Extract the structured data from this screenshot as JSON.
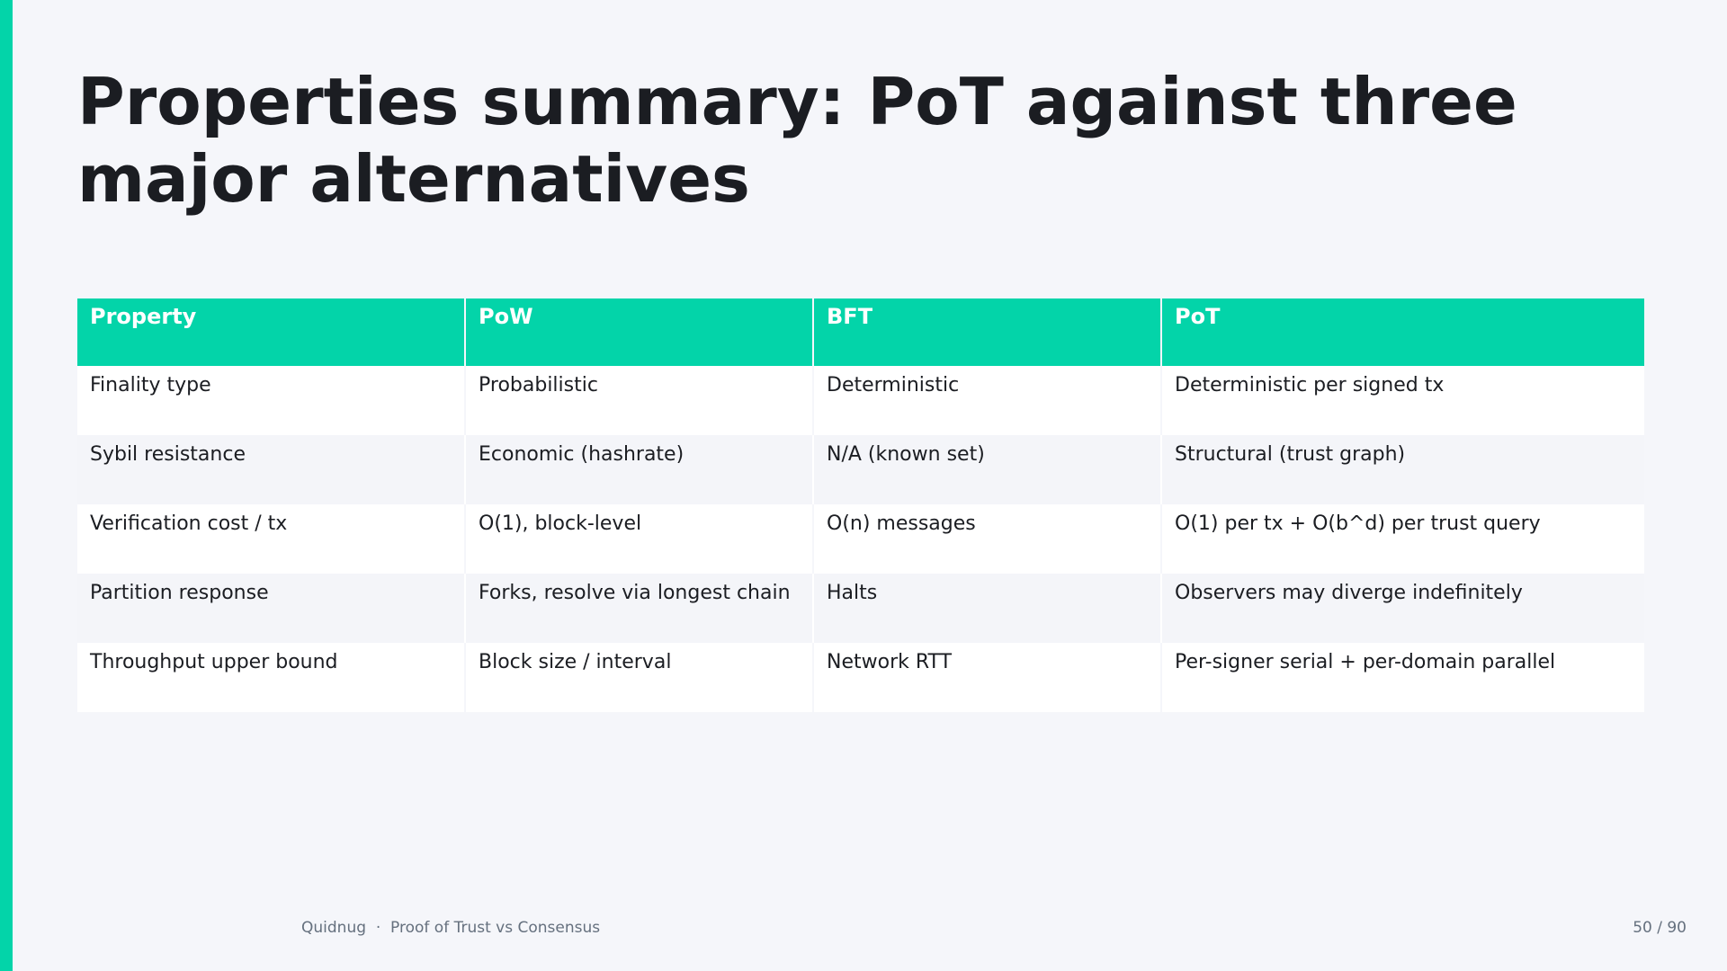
{
  "header": {
    "title": "Properties summary: PoT against three major alternatives"
  },
  "table": {
    "columns": [
      "Property",
      "PoW",
      "BFT",
      "PoT"
    ],
    "rows": [
      [
        "Finality type",
        "Probabilistic",
        "Deterministic",
        "Deterministic per signed tx"
      ],
      [
        "Sybil resistance",
        "Economic (hashrate)",
        "N/A (known set)",
        "Structural (trust graph)"
      ],
      [
        "Verification cost / tx",
        "O(1), block-level",
        "O(n) messages",
        "O(1) per tx + O(b^d) per trust query"
      ],
      [
        "Partition response",
        "Forks, resolve via longest chain",
        "Halts",
        "Observers may diverge indefinitely"
      ],
      [
        "Throughput upper bound",
        "Block size / interval",
        "Network RTT",
        "Per-signer serial + per-domain parallel"
      ]
    ]
  },
  "footer": {
    "brand": "Quidnug",
    "deck": "Proof of Trust vs Consensus",
    "page": "50 / 90"
  }
}
